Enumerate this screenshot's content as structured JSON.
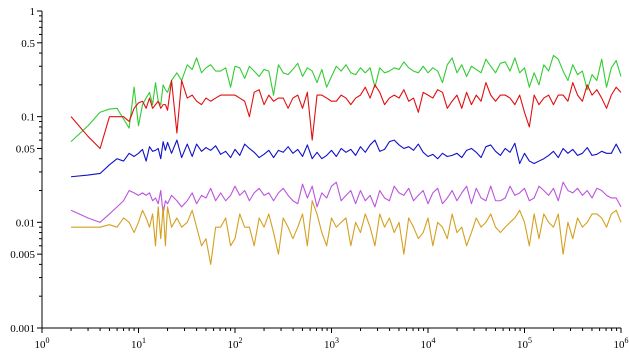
{
  "chart_data": {
    "type": "line",
    "title": "",
    "xlabel": "",
    "ylabel": "",
    "xscale": "log",
    "yscale": "log",
    "xlim": [
      1,
      1000000
    ],
    "ylim": [
      0.001,
      1
    ],
    "grid": false,
    "legend": "none",
    "x_ticks": [
      {
        "value": 1,
        "base": "10",
        "exp": "0"
      },
      {
        "value": 10,
        "base": "10",
        "exp": "1"
      },
      {
        "value": 100,
        "base": "10",
        "exp": "2"
      },
      {
        "value": 1000,
        "base": "10",
        "exp": "3"
      },
      {
        "value": 10000,
        "base": "10",
        "exp": "4"
      },
      {
        "value": 100000,
        "base": "10",
        "exp": "5"
      },
      {
        "value": 1000000,
        "base": "10",
        "exp": "6"
      }
    ],
    "y_ticks": [
      {
        "value": 0.001,
        "label": "0.001"
      },
      {
        "value": 0.005,
        "label": "0.005"
      },
      {
        "value": 0.01,
        "label": "0.01"
      },
      {
        "value": 0.05,
        "label": "0.05"
      },
      {
        "value": 0.1,
        "label": "0.1"
      },
      {
        "value": 0.5,
        "label": "0.5"
      },
      {
        "value": 1,
        "label": "1"
      }
    ],
    "x": [
      2,
      3,
      4,
      5,
      6,
      7,
      8,
      9,
      10,
      11,
      12,
      13,
      14,
      15,
      16,
      17,
      18,
      19,
      20,
      22,
      25,
      28,
      32,
      36,
      40,
      45,
      50,
      56,
      63,
      71,
      80,
      90,
      100,
      112,
      126,
      141,
      158,
      178,
      200,
      224,
      251,
      282,
      316,
      355,
      398,
      447,
      501,
      562,
      631,
      708,
      794,
      891,
      1000,
      1122,
      1259,
      1413,
      1585,
      1778,
      1995,
      2239,
      2512,
      2818,
      3162,
      3548,
      3981,
      4467,
      5012,
      5623,
      6310,
      7079,
      7943,
      8913,
      10000,
      11220,
      12589,
      14125,
      15849,
      17783,
      19953,
      22387,
      25119,
      28184,
      31623,
      35481,
      39811,
      44668,
      50119,
      56234,
      63096,
      70795,
      79433,
      89125,
      100000,
      112202,
      125893,
      141254,
      158489,
      177828,
      199526,
      223872,
      251189,
      281838,
      316228,
      354813,
      398107,
      446684,
      501187,
      562341,
      630957,
      707946,
      794328,
      891251,
      1000000
    ],
    "series": [
      {
        "color": "#33cc33",
        "values": [
          0.058,
          0.082,
          0.11,
          0.118,
          0.12,
          0.095,
          0.078,
          0.19,
          0.082,
          0.13,
          0.15,
          0.17,
          0.13,
          0.21,
          0.14,
          0.13,
          0.2,
          0.18,
          0.17,
          0.22,
          0.26,
          0.22,
          0.31,
          0.28,
          0.36,
          0.26,
          0.29,
          0.31,
          0.27,
          0.27,
          0.29,
          0.19,
          0.3,
          0.29,
          0.23,
          0.3,
          0.27,
          0.24,
          0.28,
          0.27,
          0.16,
          0.31,
          0.26,
          0.25,
          0.28,
          0.32,
          0.24,
          0.29,
          0.27,
          0.21,
          0.28,
          0.19,
          0.24,
          0.3,
          0.27,
          0.31,
          0.26,
          0.25,
          0.29,
          0.26,
          0.29,
          0.19,
          0.29,
          0.26,
          0.27,
          0.29,
          0.28,
          0.33,
          0.29,
          0.27,
          0.26,
          0.3,
          0.26,
          0.29,
          0.27,
          0.21,
          0.31,
          0.36,
          0.26,
          0.31,
          0.24,
          0.3,
          0.28,
          0.26,
          0.35,
          0.3,
          0.26,
          0.32,
          0.33,
          0.27,
          0.36,
          0.26,
          0.29,
          0.19,
          0.26,
          0.2,
          0.31,
          0.27,
          0.38,
          0.35,
          0.27,
          0.22,
          0.31,
          0.25,
          0.27,
          0.18,
          0.25,
          0.22,
          0.35,
          0.19,
          0.29,
          0.34,
          0.24
        ]
      },
      {
        "color": "#e01010",
        "values": [
          0.1,
          0.065,
          0.05,
          0.1,
          0.1,
          0.1,
          0.09,
          0.12,
          0.135,
          0.14,
          0.12,
          0.15,
          0.12,
          0.13,
          0.14,
          0.12,
          0.13,
          0.13,
          0.115,
          0.22,
          0.07,
          0.22,
          0.15,
          0.16,
          0.14,
          0.13,
          0.15,
          0.14,
          0.15,
          0.16,
          0.16,
          0.16,
          0.16,
          0.15,
          0.14,
          0.1,
          0.17,
          0.18,
          0.13,
          0.16,
          0.14,
          0.15,
          0.15,
          0.12,
          0.15,
          0.16,
          0.12,
          0.17,
          0.06,
          0.16,
          0.16,
          0.15,
          0.14,
          0.14,
          0.16,
          0.15,
          0.13,
          0.15,
          0.16,
          0.19,
          0.15,
          0.2,
          0.17,
          0.13,
          0.15,
          0.16,
          0.15,
          0.18,
          0.14,
          0.15,
          0.11,
          0.17,
          0.16,
          0.15,
          0.18,
          0.17,
          0.12,
          0.14,
          0.16,
          0.12,
          0.17,
          0.13,
          0.16,
          0.14,
          0.21,
          0.16,
          0.14,
          0.16,
          0.16,
          0.15,
          0.13,
          0.16,
          0.11,
          0.08,
          0.16,
          0.13,
          0.15,
          0.16,
          0.13,
          0.16,
          0.16,
          0.14,
          0.21,
          0.16,
          0.14,
          0.2,
          0.16,
          0.18,
          0.15,
          0.12,
          0.16,
          0.19,
          0.17
        ]
      },
      {
        "color": "#1010cc",
        "values": [
          0.027,
          0.028,
          0.029,
          0.035,
          0.04,
          0.038,
          0.045,
          0.042,
          0.045,
          0.049,
          0.038,
          0.052,
          0.047,
          0.048,
          0.05,
          0.04,
          0.058,
          0.048,
          0.057,
          0.045,
          0.06,
          0.041,
          0.055,
          0.042,
          0.055,
          0.047,
          0.051,
          0.048,
          0.053,
          0.044,
          0.047,
          0.041,
          0.049,
          0.043,
          0.055,
          0.05,
          0.046,
          0.041,
          0.044,
          0.048,
          0.041,
          0.048,
          0.046,
          0.052,
          0.045,
          0.049,
          0.042,
          0.054,
          0.04,
          0.046,
          0.04,
          0.043,
          0.048,
          0.042,
          0.05,
          0.046,
          0.049,
          0.043,
          0.052,
          0.046,
          0.054,
          0.06,
          0.047,
          0.049,
          0.058,
          0.06,
          0.054,
          0.05,
          0.052,
          0.048,
          0.055,
          0.046,
          0.042,
          0.044,
          0.04,
          0.045,
          0.042,
          0.043,
          0.045,
          0.041,
          0.048,
          0.05,
          0.046,
          0.041,
          0.052,
          0.054,
          0.047,
          0.043,
          0.05,
          0.046,
          0.056,
          0.036,
          0.045,
          0.038,
          0.036,
          0.038,
          0.04,
          0.043,
          0.047,
          0.041,
          0.05,
          0.045,
          0.049,
          0.043,
          0.045,
          0.051,
          0.043,
          0.044,
          0.047,
          0.045,
          0.045,
          0.055,
          0.045
        ]
      },
      {
        "color": "#bb55dd",
        "values": [
          0.013,
          0.011,
          0.01,
          0.012,
          0.014,
          0.016,
          0.02,
          0.019,
          0.018,
          0.019,
          0.018,
          0.019,
          0.016,
          0.017,
          0.015,
          0.02,
          0.012,
          0.016,
          0.015,
          0.018,
          0.016,
          0.014,
          0.016,
          0.019,
          0.015,
          0.018,
          0.017,
          0.021,
          0.016,
          0.019,
          0.016,
          0.018,
          0.022,
          0.018,
          0.02,
          0.016,
          0.019,
          0.021,
          0.018,
          0.019,
          0.016,
          0.019,
          0.021,
          0.018,
          0.016,
          0.015,
          0.023,
          0.017,
          0.022,
          0.014,
          0.019,
          0.017,
          0.022,
          0.024,
          0.016,
          0.018,
          0.02,
          0.015,
          0.02,
          0.016,
          0.018,
          0.014,
          0.02,
          0.017,
          0.016,
          0.022,
          0.019,
          0.018,
          0.021,
          0.016,
          0.018,
          0.02,
          0.015,
          0.019,
          0.021,
          0.015,
          0.017,
          0.02,
          0.016,
          0.019,
          0.022,
          0.015,
          0.021,
          0.017,
          0.016,
          0.022,
          0.016,
          0.016,
          0.017,
          0.022,
          0.018,
          0.019,
          0.021,
          0.016,
          0.017,
          0.022,
          0.02,
          0.018,
          0.021,
          0.016,
          0.024,
          0.02,
          0.019,
          0.021,
          0.018,
          0.02,
          0.017,
          0.021,
          0.02,
          0.018,
          0.017,
          0.017,
          0.014
        ]
      },
      {
        "color": "#d4a020",
        "values": [
          0.009,
          0.009,
          0.009,
          0.0095,
          0.009,
          0.011,
          0.01,
          0.008,
          0.01,
          0.013,
          0.011,
          0.009,
          0.012,
          0.006,
          0.014,
          0.007,
          0.014,
          0.006,
          0.014,
          0.009,
          0.011,
          0.009,
          0.01,
          0.013,
          0.009,
          0.006,
          0.007,
          0.004,
          0.009,
          0.009,
          0.011,
          0.006,
          0.007,
          0.012,
          0.009,
          0.009,
          0.006,
          0.011,
          0.009,
          0.012,
          0.008,
          0.005,
          0.011,
          0.009,
          0.007,
          0.009,
          0.012,
          0.006,
          0.016,
          0.012,
          0.008,
          0.006,
          0.011,
          0.009,
          0.01,
          0.011,
          0.006,
          0.01,
          0.008,
          0.012,
          0.009,
          0.006,
          0.012,
          0.009,
          0.011,
          0.008,
          0.01,
          0.005,
          0.011,
          0.009,
          0.007,
          0.008,
          0.011,
          0.006,
          0.01,
          0.009,
          0.007,
          0.012,
          0.008,
          0.009,
          0.006,
          0.008,
          0.011,
          0.009,
          0.01,
          0.012,
          0.009,
          0.008,
          0.009,
          0.01,
          0.011,
          0.013,
          0.01,
          0.006,
          0.012,
          0.007,
          0.012,
          0.01,
          0.009,
          0.012,
          0.005,
          0.01,
          0.007,
          0.011,
          0.009,
          0.01,
          0.012,
          0.012,
          0.011,
          0.009,
          0.012,
          0.013,
          0.01
        ]
      }
    ]
  }
}
